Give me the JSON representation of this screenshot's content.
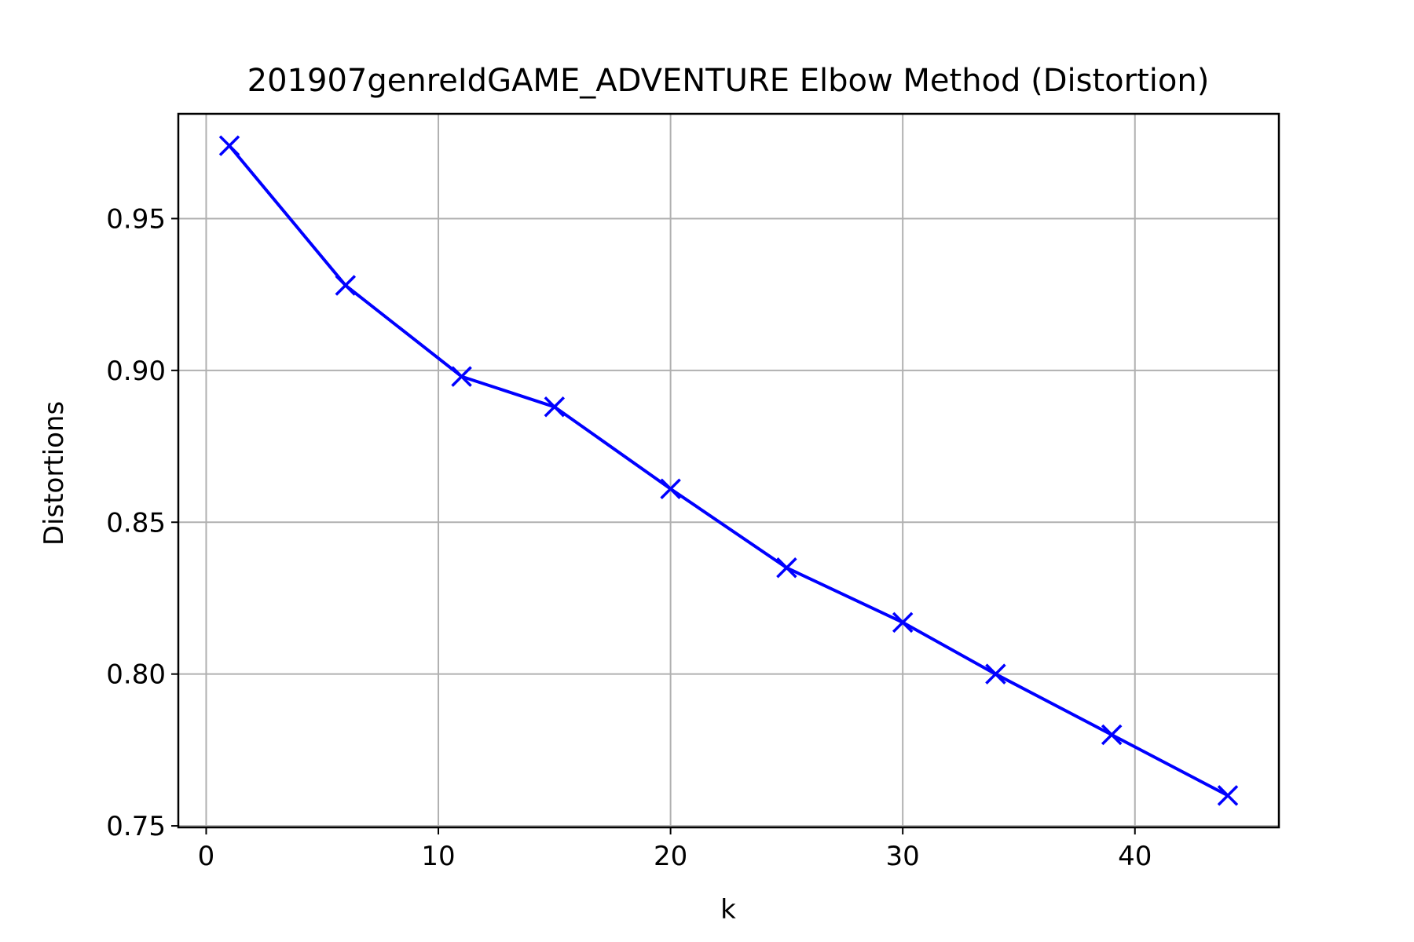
{
  "chart_data": {
    "type": "line",
    "title": "201907genreIdGAME_ADVENTURE Elbow Method (Distortion)",
    "xlabel": "k",
    "ylabel": "Distortions",
    "xlim": [
      -1.2,
      46.2
    ],
    "ylim": [
      0.7495,
      0.9845
    ],
    "xticks": [
      0,
      10,
      20,
      30,
      40
    ],
    "yticks": [
      0.75,
      0.8,
      0.85,
      0.9,
      0.95
    ],
    "ytick_labels": [
      "0.75",
      "0.80",
      "0.85",
      "0.90",
      "0.95"
    ],
    "grid": true,
    "legend": "none",
    "series": [
      {
        "color": "#0000ff",
        "marker": "x",
        "x": [
          1,
          6,
          11,
          15,
          20,
          25,
          30,
          34,
          39,
          44
        ],
        "y": [
          0.974,
          0.928,
          0.898,
          0.888,
          0.861,
          0.835,
          0.817,
          0.8,
          0.78,
          0.76
        ]
      }
    ]
  }
}
